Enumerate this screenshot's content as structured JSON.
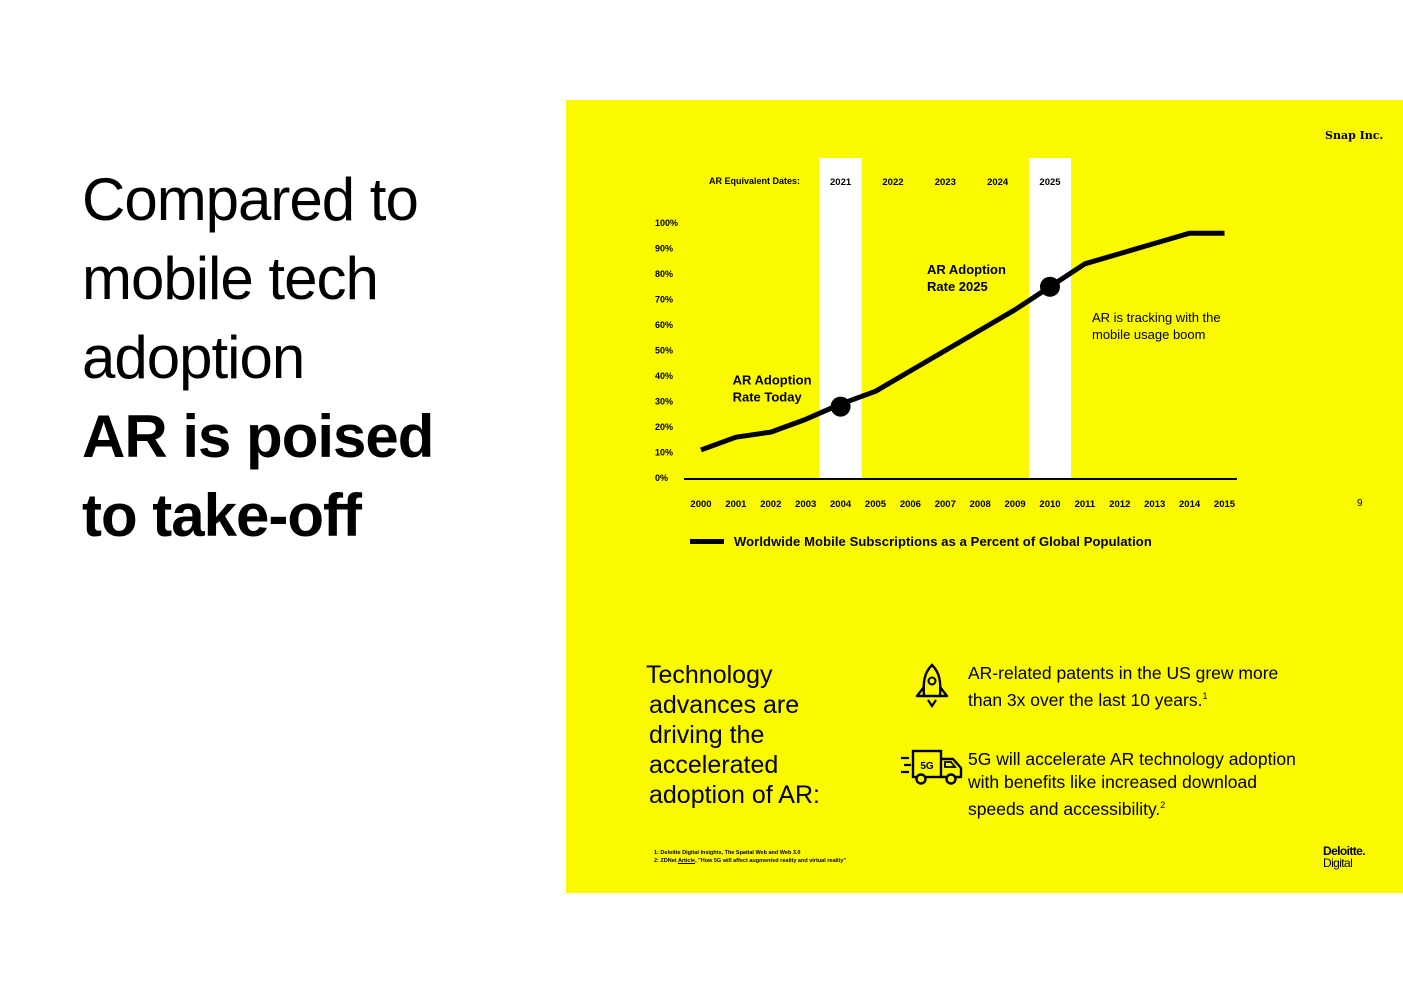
{
  "headline": {
    "lines_light": [
      "Compared to",
      "mobile tech",
      "adoption"
    ],
    "lines_bold": [
      "AR is poised",
      "to take-off"
    ]
  },
  "brand": {
    "snap": "Snap Inc.",
    "deloitte_top": "Deloitte.",
    "deloitte_bottom": "Digital"
  },
  "page_number": "9",
  "chart_data": {
    "type": "line",
    "title": "",
    "xlabel": "",
    "ylabel": "",
    "x": [
      "2000",
      "2001",
      "2002",
      "2003",
      "2004",
      "2005",
      "2006",
      "2007",
      "2008",
      "2009",
      "2010",
      "2011",
      "2012",
      "2013",
      "2014",
      "2015"
    ],
    "series": [
      {
        "name": "Worldwide Mobile Subscriptions as a Percent of Global Population",
        "values": [
          11,
          16,
          18,
          23,
          29,
          34,
          42,
          50,
          58,
          66,
          75,
          84,
          88,
          92,
          96,
          96
        ]
      }
    ],
    "y_ticks": [
      "0%",
      "10%",
      "20%",
      "30%",
      "40%",
      "50%",
      "60%",
      "70%",
      "80%",
      "90%",
      "100%"
    ],
    "ylim": [
      0,
      100
    ],
    "ar_dates_label": "AR Equivalent Dates:",
    "ar_dates": [
      {
        "label": "2021",
        "x": "2004",
        "highlighted": true
      },
      {
        "label": "2022",
        "x": "2005.5",
        "highlighted": false
      },
      {
        "label": "2023",
        "x": "2007",
        "highlighted": false
      },
      {
        "label": "2024",
        "x": "2008.5",
        "highlighted": false
      },
      {
        "label": "2025",
        "x": "2010",
        "highlighted": true
      }
    ],
    "markers": [
      {
        "x": "2004",
        "y": 28,
        "label_lines": [
          "AR Adoption",
          "Rate Today"
        ]
      },
      {
        "x": "2010",
        "y": 75,
        "label_lines": [
          "AR Adoption",
          "Rate 2025"
        ]
      }
    ],
    "annotation_lines": [
      "AR is tracking with the",
      "mobile usage boom"
    ],
    "legend_placement": "bottom",
    "grid": false,
    "colors": {
      "background": "#fbf900",
      "line": "#000000",
      "highlight_band": "#ffffff"
    }
  },
  "drivers": {
    "heading_lines": [
      "Technology",
      "advances are",
      "driving the",
      "accelerated",
      "adoption of AR:"
    ],
    "items": [
      {
        "icon": "rocket-icon",
        "text": "AR-related patents in the US grew more than 3x over the last 10 years.",
        "sup": "1"
      },
      {
        "icon": "delivery-truck-5g-icon",
        "text": "5G will accelerate AR technology adoption with benefits like increased download speeds and accessibility.",
        "sup": "2",
        "icon_label": "5G"
      }
    ]
  },
  "footnotes": {
    "line1": "1: Deloitte Digital Insights, The Spatial Web and Web 3.0",
    "line2_prefix": "2: ZDNet ",
    "line2_link": "Article",
    "line2_suffix": ", \"How 5G will affect augmented reality and virtual reality\""
  }
}
